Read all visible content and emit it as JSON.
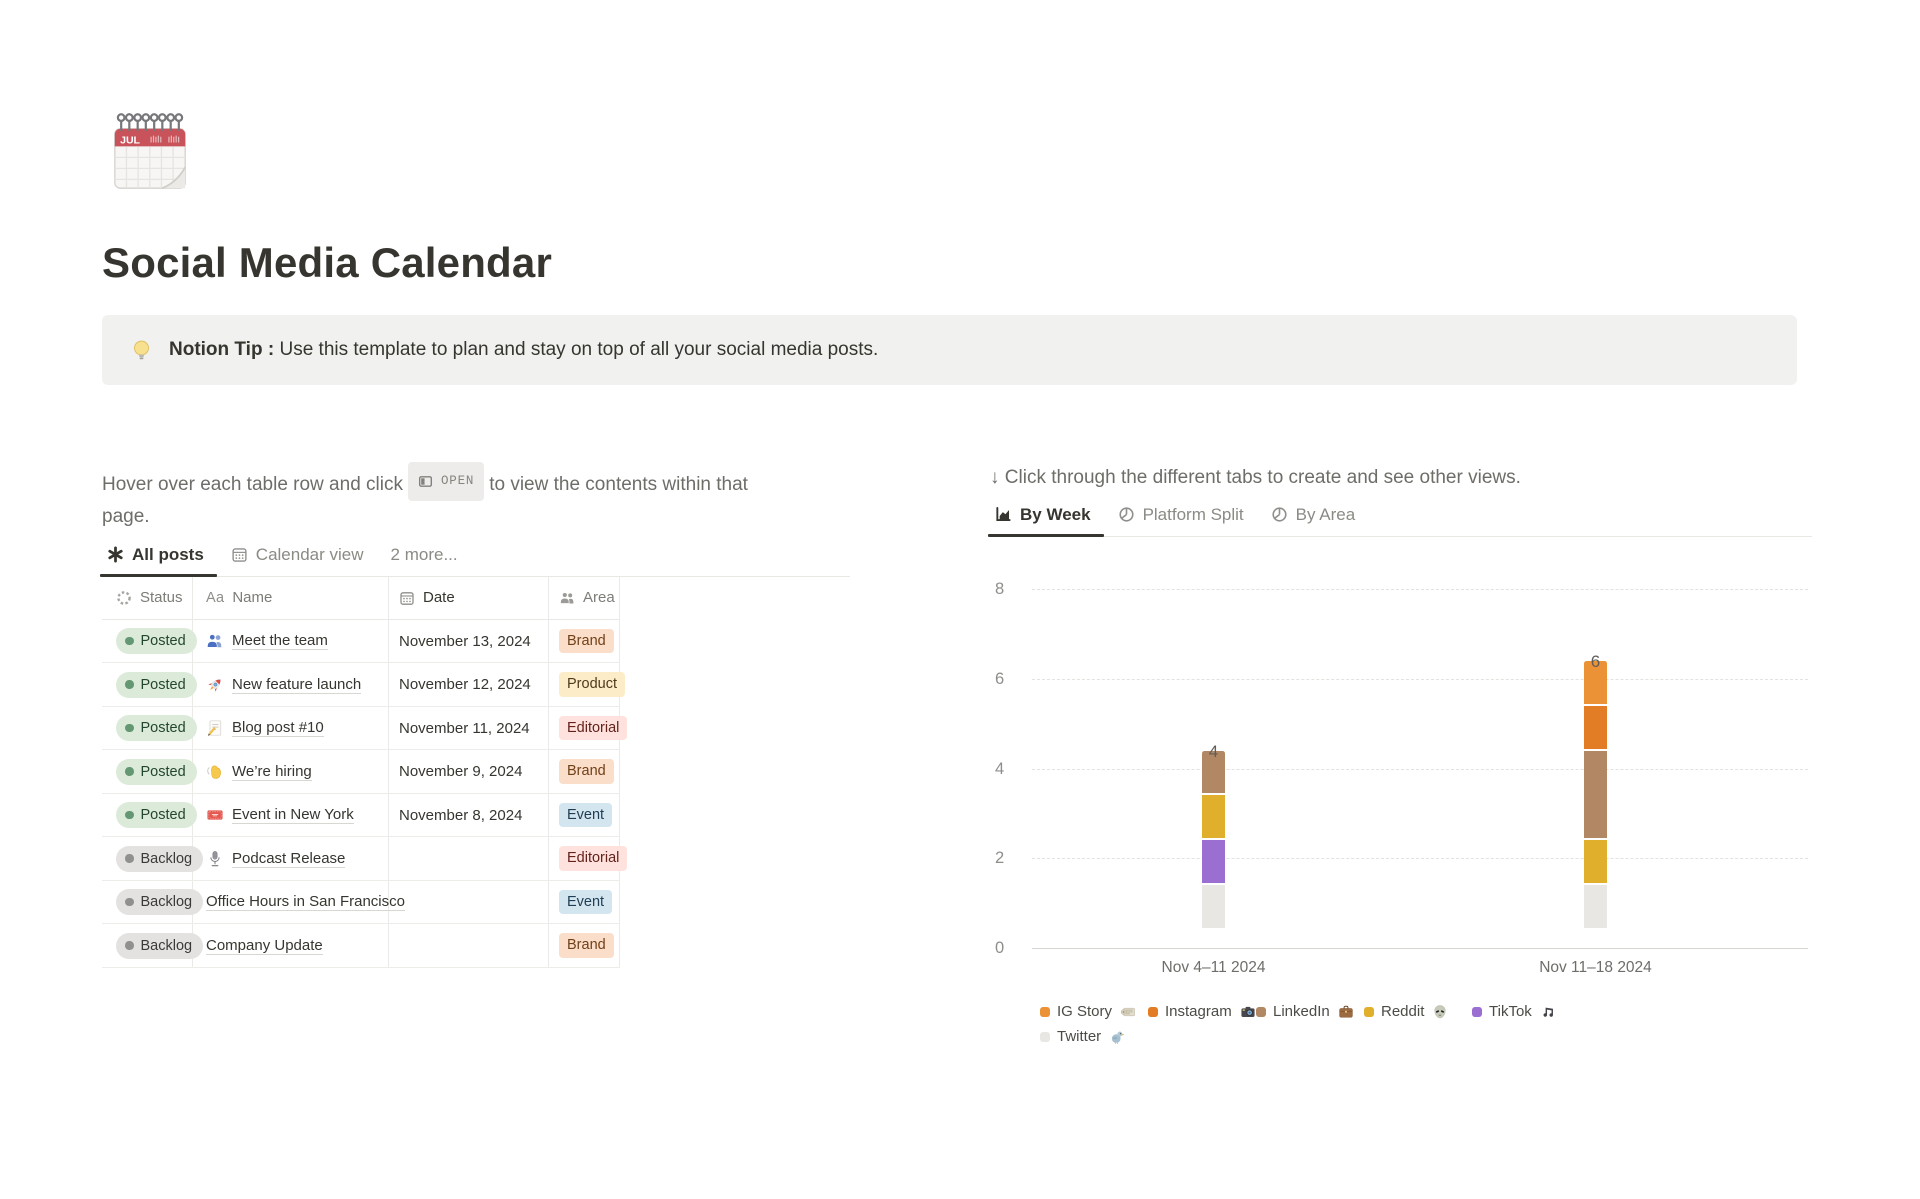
{
  "page": {
    "title": "Social Media Calendar",
    "icon": "spiral-calendar-emoji"
  },
  "callout": {
    "icon": "light-bulb-emoji",
    "label_bold": "Notion Tip :",
    "text": "Use this template to plan and stay on top of all your social media posts."
  },
  "left_panel": {
    "intro_before_badge": "Hover over each table row and click",
    "open_badge_label": "OPEN",
    "intro_after_badge": "to view the contents within that",
    "intro_line2": "page.",
    "tabs": [
      {
        "label": "All posts",
        "icon": "asterisk-icon",
        "active": true
      },
      {
        "label": "Calendar view",
        "icon": "calendar-icon",
        "active": false
      },
      {
        "label": "2 more...",
        "icon": "",
        "active": false
      }
    ],
    "table": {
      "columns": [
        {
          "label": "Status",
          "icon": "status-spinner-icon"
        },
        {
          "label": "Name",
          "icon": "aa-icon"
        },
        {
          "label": "Date",
          "icon": "calendar-icon"
        },
        {
          "label": "Area",
          "icon": "people-icon"
        }
      ],
      "rows": [
        {
          "status": "Posted",
          "status_color": "green",
          "emoji": "👥",
          "emoji_icon": "busts-emoji",
          "name": "Meet the team",
          "date": "November 13, 2024",
          "area": "Brand",
          "area_color": "orange"
        },
        {
          "status": "Posted",
          "status_color": "green",
          "emoji": "🚀",
          "emoji_icon": "rocket-emoji",
          "name": "New feature launch",
          "date": "November 12, 2024",
          "area": "Product",
          "area_color": "yellow"
        },
        {
          "status": "Posted",
          "status_color": "green",
          "emoji": "📝",
          "emoji_icon": "memo-emoji",
          "name": "Blog post #10",
          "date": "November 11, 2024",
          "area": "Editorial",
          "area_color": "red"
        },
        {
          "status": "Posted",
          "status_color": "green",
          "emoji": "👋",
          "emoji_icon": "wave-emoji",
          "name": "We’re hiring",
          "date": "November 9, 2024",
          "area": "Brand",
          "area_color": "orange"
        },
        {
          "status": "Posted",
          "status_color": "green",
          "emoji": "🎟️",
          "emoji_icon": "ticket-emoji",
          "name": "Event in New York",
          "date": "November 8, 2024",
          "area": "Event",
          "area_color": "blue"
        },
        {
          "status": "Backlog",
          "status_color": "gray",
          "emoji": "🎙️",
          "emoji_icon": "microphone-emoji",
          "name": "Podcast Release",
          "date": "",
          "area": "Editorial",
          "area_color": "red"
        },
        {
          "status": "Backlog",
          "status_color": "gray",
          "emoji": "",
          "emoji_icon": "",
          "name": "Office Hours in San Francisco",
          "date": "",
          "area": "Event",
          "area_color": "blue"
        },
        {
          "status": "Backlog",
          "status_color": "gray",
          "emoji": "",
          "emoji_icon": "",
          "name": "Company Update",
          "date": "",
          "area": "Brand",
          "area_color": "orange"
        }
      ]
    }
  },
  "right_panel": {
    "intro": "↓ Click through the different tabs to create and see other views.",
    "tabs": [
      {
        "label": "By Week",
        "icon": "bar-chart-icon",
        "active": true
      },
      {
        "label": "Platform Split",
        "icon": "pie-chart-icon",
        "active": false
      },
      {
        "label": "By Area",
        "icon": "pie-chart-icon",
        "active": false
      }
    ]
  },
  "chart_data": {
    "type": "bar",
    "stacked": true,
    "title": "",
    "xlabel": "",
    "ylabel": "",
    "categories": [
      "Nov 4–11 2024",
      "Nov 11–18 2024"
    ],
    "series": [
      {
        "name": "Twitter",
        "emoji": "🐦",
        "emoji_icon": "bird-emoji",
        "color": "#e8e7e3",
        "values": [
          1,
          1
        ]
      },
      {
        "name": "TikTok",
        "emoji": "🎵",
        "emoji_icon": "music-note-emoji",
        "color": "#9b6ed2",
        "values": [
          1,
          0
        ]
      },
      {
        "name": "Reddit",
        "emoji": "👽",
        "emoji_icon": "alien-emoji",
        "color": "#e0b02c",
        "values": [
          1,
          1
        ]
      },
      {
        "name": "LinkedIn",
        "emoji": "💼",
        "emoji_icon": "briefcase-emoji",
        "color": "#b28763",
        "values": [
          1,
          2
        ]
      },
      {
        "name": "Instagram",
        "emoji": "📸",
        "emoji_icon": "camera-emoji",
        "color": "#e27d26",
        "values": [
          0,
          1
        ]
      },
      {
        "name": "IG Story",
        "emoji": "🗞️",
        "emoji_icon": "newspaper-emoji",
        "color": "#ec9236",
        "values": [
          0,
          1
        ]
      }
    ],
    "bar_totals": [
      4,
      6
    ],
    "y_ticks": [
      0,
      2,
      4,
      6,
      8
    ],
    "ylim": [
      0,
      8
    ],
    "grid": "dashed-horizontal",
    "legend_position": "bottom",
    "legend_order": [
      "IG Story",
      "Instagram",
      "LinkedIn",
      "Reddit",
      "TikTok",
      "Twitter"
    ]
  }
}
